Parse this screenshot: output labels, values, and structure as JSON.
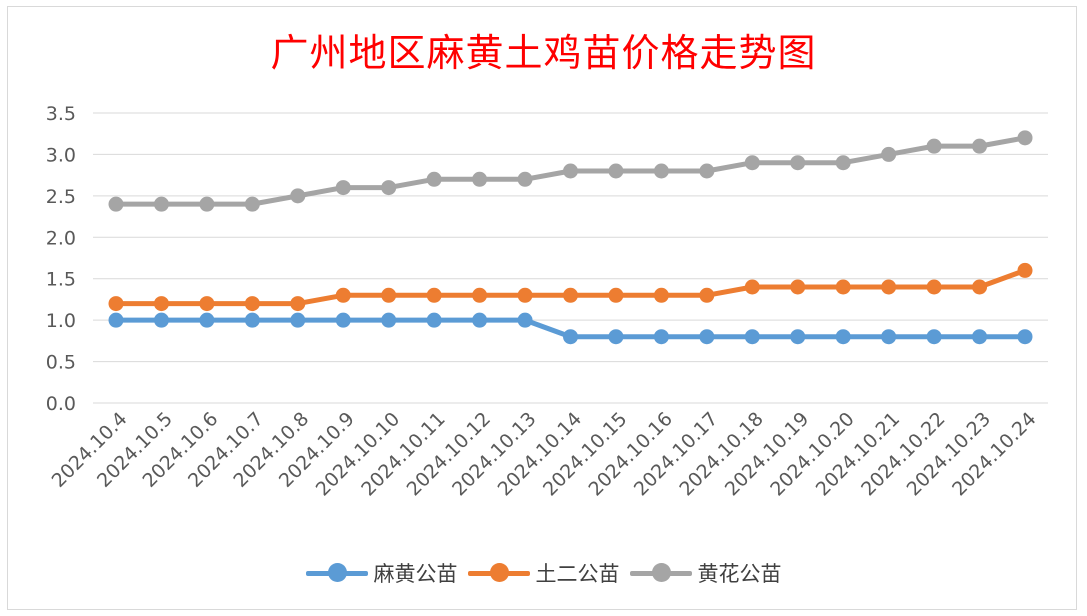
{
  "chart_data": {
    "type": "line",
    "title": "广州地区麻黄土鸡苗价格走势图",
    "categories": [
      "2024.10.4",
      "2024.10.5",
      "2024.10.6",
      "2024.10.7",
      "2024.10.8",
      "2024.10.9",
      "2024.10.10",
      "2024.10.11",
      "2024.10.12",
      "2024.10.13",
      "2024.10.14",
      "2024.10.15",
      "2024.10.16",
      "2024.10.17",
      "2024.10.18",
      "2024.10.19",
      "2024.10.20",
      "2024.10.21",
      "2024.10.22",
      "2024.10.23",
      "2024.10.24"
    ],
    "y_ticks": [
      "0.0",
      "0.5",
      "1.0",
      "1.5",
      "2.0",
      "2.5",
      "3.0",
      "3.5"
    ],
    "ylim": [
      0,
      3.5
    ],
    "grid": true,
    "legend_position": "bottom",
    "series": [
      {
        "name": "麻黄公苗",
        "color": "#5b9bd5",
        "values": [
          1.0,
          1.0,
          1.0,
          1.0,
          1.0,
          1.0,
          1.0,
          1.0,
          1.0,
          1.0,
          0.8,
          0.8,
          0.8,
          0.8,
          0.8,
          0.8,
          0.8,
          0.8,
          0.8,
          0.8,
          0.8
        ]
      },
      {
        "name": "土二公苗",
        "color": "#ed7d31",
        "values": [
          1.2,
          1.2,
          1.2,
          1.2,
          1.2,
          1.3,
          1.3,
          1.3,
          1.3,
          1.3,
          1.3,
          1.3,
          1.3,
          1.3,
          1.4,
          1.4,
          1.4,
          1.4,
          1.4,
          1.4,
          1.6
        ]
      },
      {
        "name": "黄花公苗",
        "color": "#a5a5a5",
        "values": [
          2.4,
          2.4,
          2.4,
          2.4,
          2.5,
          2.6,
          2.6,
          2.7,
          2.7,
          2.7,
          2.8,
          2.8,
          2.8,
          2.8,
          2.9,
          2.9,
          2.9,
          3.0,
          3.1,
          3.1,
          3.2
        ]
      }
    ]
  }
}
